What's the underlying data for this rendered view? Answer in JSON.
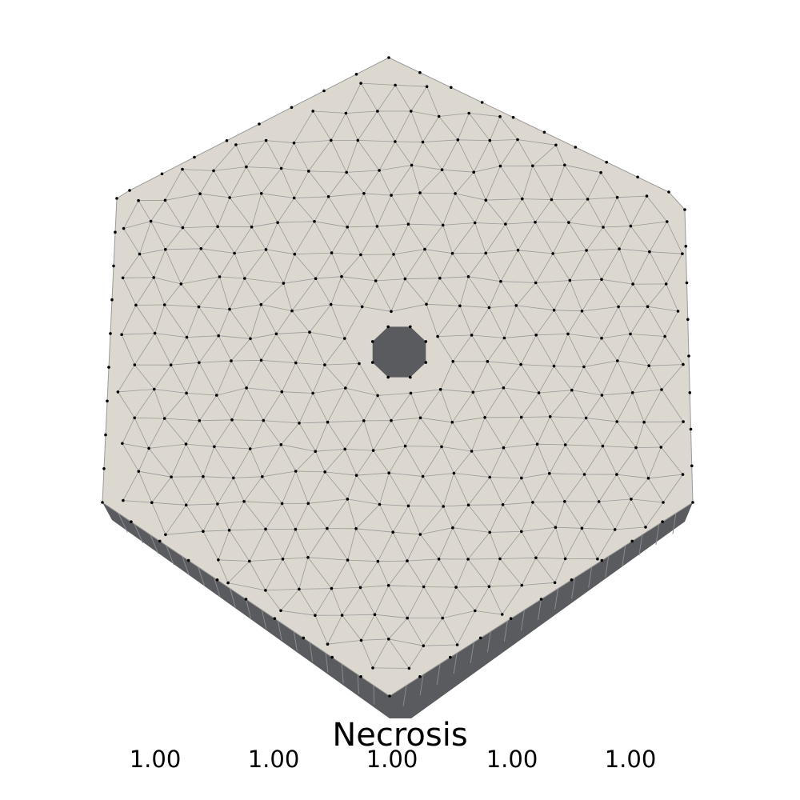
{
  "legend": {
    "title": "Necrosis",
    "ticks": [
      "1.00",
      "1.00",
      "1.00",
      "1.00",
      "1.00"
    ]
  },
  "colors": {
    "background": "#ffffff",
    "top_face": "#dcd8cf",
    "side_face": "#5a5b5f",
    "mesh_edge": "#9a9a9a",
    "node": "#000000"
  }
}
